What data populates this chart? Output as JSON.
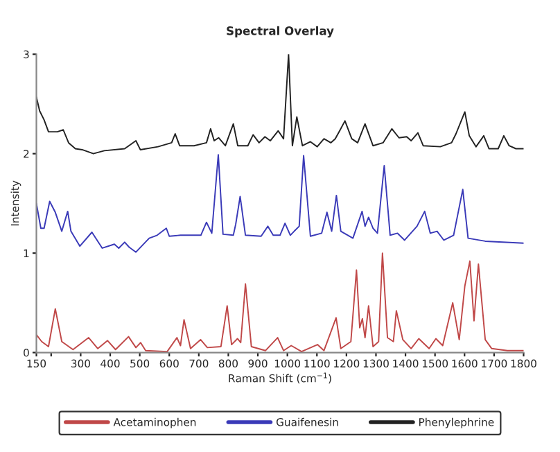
{
  "chart_data": {
    "type": "line",
    "title": "Spectral Overlay",
    "xlabel": "Raman Shift (cm$^{−1}$)",
    "ylabel": "Intensity",
    "xlim": [
      150,
      1800
    ],
    "xticks": [
      150,
      {
        "value": 200,
        "label": null
      },
      300,
      400,
      500,
      600,
      700,
      800,
      900,
      1000,
      1100,
      1200,
      1300,
      1400,
      1500,
      1600,
      1700,
      1800
    ],
    "ylim": [
      0,
      3
    ],
    "yticks": [
      0,
      1,
      2,
      3
    ],
    "grid": false,
    "legend": "bottom",
    "marker": "none",
    "line_style": "solid",
    "series": [
      {
        "name": "Acetaminophen",
        "color": "#c04848",
        "x": [
          150,
          168,
          191,
          214,
          236,
          274,
          327,
          358,
          391,
          418,
          462,
          487,
          503,
          520,
          593,
          626,
          638,
          650,
          672,
          706,
          729,
          775,
          796,
          811,
          831,
          842,
          858,
          878,
          926,
          967,
          987,
          1013,
          1048,
          1102,
          1124,
          1165,
          1181,
          1215,
          1234,
          1245,
          1254,
          1263,
          1275,
          1290,
          1309,
          1322,
          1339,
          1359,
          1369,
          1391,
          1419,
          1445,
          1480,
          1503,
          1526,
          1560,
          1582,
          1601,
          1618,
          1632,
          1647,
          1670,
          1692,
          1745,
          1800
        ],
        "values": [
          0.18,
          0.11,
          0.06,
          0.44,
          0.11,
          0.03,
          0.15,
          0.04,
          0.12,
          0.03,
          0.16,
          0.05,
          0.1,
          0.02,
          0.01,
          0.15,
          0.07,
          0.33,
          0.04,
          0.13,
          0.05,
          0.06,
          0.47,
          0.08,
          0.14,
          0.1,
          0.69,
          0.06,
          0.02,
          0.15,
          0.02,
          0.07,
          0.01,
          0.08,
          0.02,
          0.35,
          0.04,
          0.11,
          0.83,
          0.25,
          0.34,
          0.15,
          0.47,
          0.06,
          0.11,
          1.0,
          0.15,
          0.11,
          0.42,
          0.13,
          0.04,
          0.14,
          0.04,
          0.14,
          0.07,
          0.5,
          0.13,
          0.67,
          0.92,
          0.32,
          0.89,
          0.13,
          0.04,
          0.02,
          0.02
        ]
      },
      {
        "name": "Guaifenesin",
        "color": "#3a3ab8",
        "x": [
          150,
          165,
          176,
          195,
          214,
          236,
          256,
          267,
          297,
          338,
          373,
          414,
          429,
          449,
          464,
          487,
          532,
          559,
          590,
          600,
          638,
          707,
          726,
          744,
          766,
          782,
          817,
          825,
          840,
          858,
          911,
          934,
          952,
          975,
          992,
          1010,
          1023,
          1040,
          1055,
          1078,
          1116,
          1134,
          1150,
          1166,
          1181,
          1222,
          1253,
          1263,
          1275,
          1290,
          1305,
          1328,
          1348,
          1373,
          1397,
          1439,
          1465,
          1484,
          1507,
          1530,
          1563,
          1594,
          1612,
          1670,
          1800
        ],
        "values": [
          1.5,
          1.25,
          1.25,
          1.52,
          1.41,
          1.22,
          1.42,
          1.22,
          1.07,
          1.21,
          1.05,
          1.09,
          1.05,
          1.11,
          1.06,
          1.01,
          1.15,
          1.18,
          1.25,
          1.17,
          1.18,
          1.18,
          1.31,
          1.2,
          1.99,
          1.19,
          1.18,
          1.29,
          1.57,
          1.18,
          1.17,
          1.27,
          1.18,
          1.18,
          1.3,
          1.18,
          1.22,
          1.27,
          1.98,
          1.17,
          1.2,
          1.41,
          1.22,
          1.58,
          1.22,
          1.15,
          1.42,
          1.27,
          1.36,
          1.25,
          1.2,
          1.88,
          1.18,
          1.2,
          1.13,
          1.27,
          1.42,
          1.2,
          1.22,
          1.13,
          1.18,
          1.64,
          1.15,
          1.12,
          1.1
        ]
      },
      {
        "name": "Phenylephrine",
        "color": "#222222",
        "x": [
          150,
          161,
          176,
          191,
          221,
          241,
          259,
          282,
          305,
          343,
          380,
          449,
          487,
          502,
          562,
          608,
          620,
          635,
          684,
          726,
          740,
          752,
          767,
          790,
          817,
          832,
          866,
          884,
          904,
          924,
          942,
          969,
          987,
          1004,
          1017,
          1032,
          1051,
          1078,
          1101,
          1124,
          1147,
          1162,
          1177,
          1195,
          1218,
          1238,
          1263,
          1290,
          1324,
          1354,
          1378,
          1404,
          1419,
          1442,
          1460,
          1518,
          1556,
          1571,
          1601,
          1616,
          1639,
          1665,
          1683,
          1714,
          1733,
          1751,
          1774,
          1800
        ],
        "values": [
          2.57,
          2.43,
          2.34,
          2.22,
          2.22,
          2.24,
          2.11,
          2.05,
          2.04,
          2.0,
          2.03,
          2.05,
          2.13,
          2.04,
          2.07,
          2.11,
          2.2,
          2.08,
          2.08,
          2.11,
          2.25,
          2.13,
          2.16,
          2.08,
          2.3,
          2.08,
          2.08,
          2.19,
          2.11,
          2.17,
          2.13,
          2.23,
          2.15,
          3.0,
          2.08,
          2.37,
          2.08,
          2.12,
          2.07,
          2.15,
          2.11,
          2.15,
          2.23,
          2.33,
          2.15,
          2.11,
          2.3,
          2.08,
          2.11,
          2.25,
          2.16,
          2.17,
          2.13,
          2.21,
          2.08,
          2.07,
          2.11,
          2.2,
          2.42,
          2.18,
          2.07,
          2.18,
          2.05,
          2.05,
          2.18,
          2.08,
          2.05,
          2.05
        ]
      }
    ]
  }
}
